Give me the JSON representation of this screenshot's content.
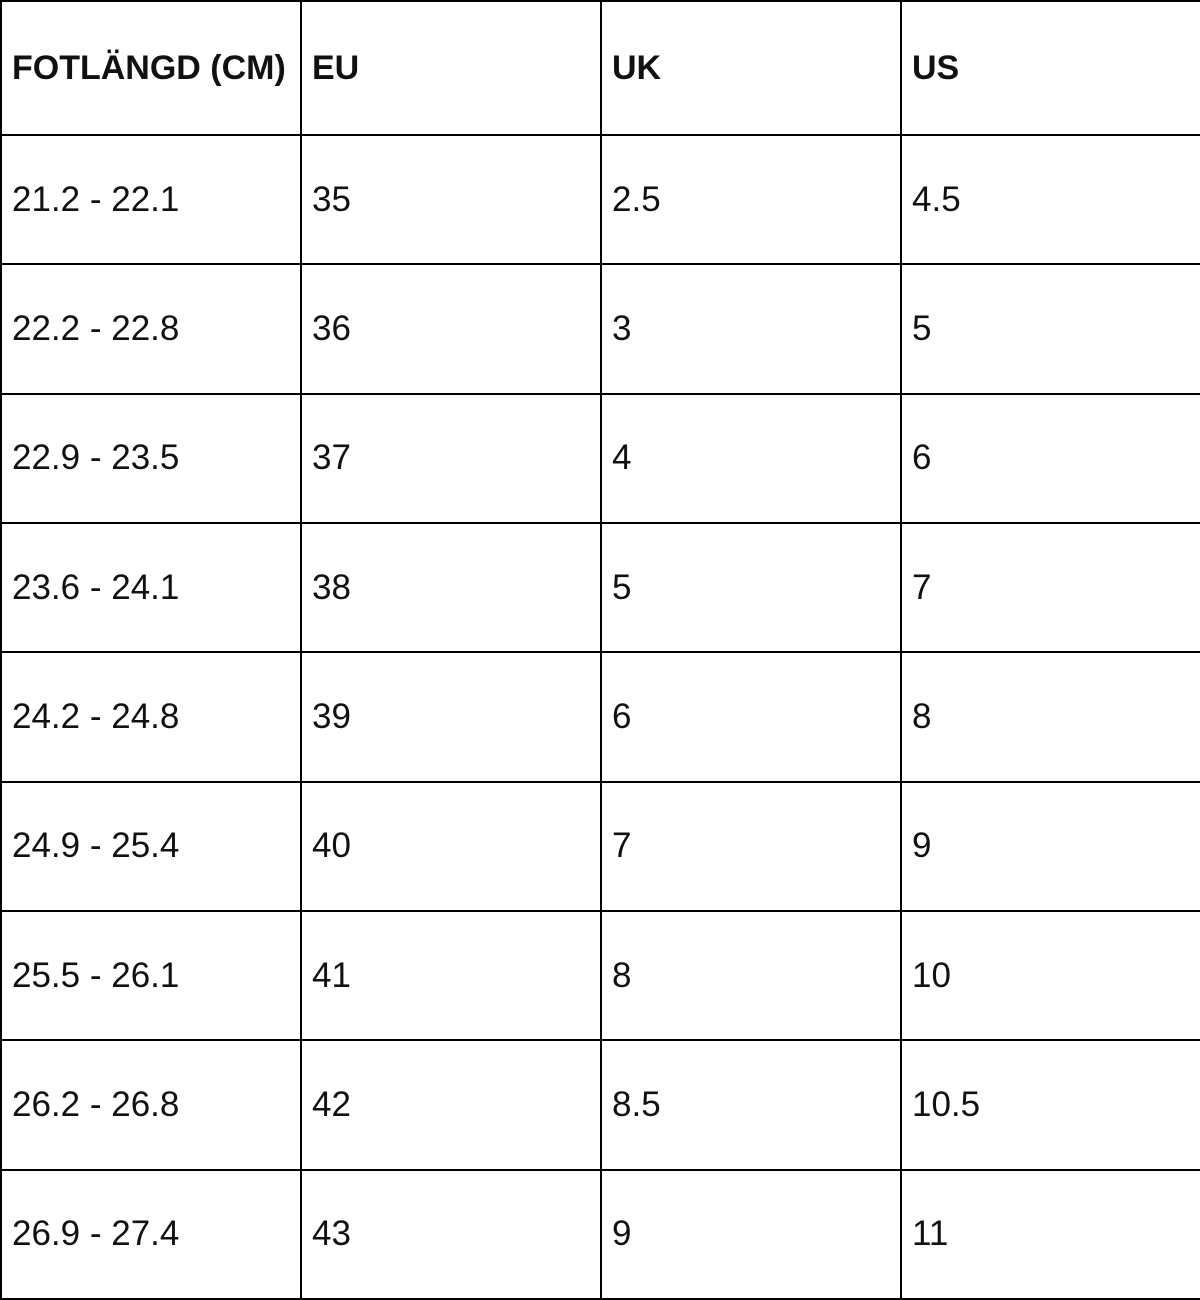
{
  "table": {
    "headers": [
      "FOTLÄNGD (CM)",
      "EU",
      "UK",
      "US"
    ],
    "rows": [
      [
        "21.2 - 22.1",
        "35",
        "2.5",
        "4.5"
      ],
      [
        "22.2 - 22.8",
        "36",
        "3",
        "5"
      ],
      [
        "22.9 - 23.5",
        "37",
        "4",
        "6"
      ],
      [
        "23.6 - 24.1",
        "38",
        "5",
        "7"
      ],
      [
        "24.2 - 24.8",
        "39",
        "6",
        "8"
      ],
      [
        "24.9 - 25.4",
        "40",
        "7",
        "9"
      ],
      [
        "25.5 - 26.1",
        "41",
        "8",
        "10"
      ],
      [
        "26.2 - 26.8",
        "42",
        "8.5",
        "10.5"
      ],
      [
        "26.9 - 27.4",
        "43",
        "9",
        "11"
      ]
    ]
  }
}
